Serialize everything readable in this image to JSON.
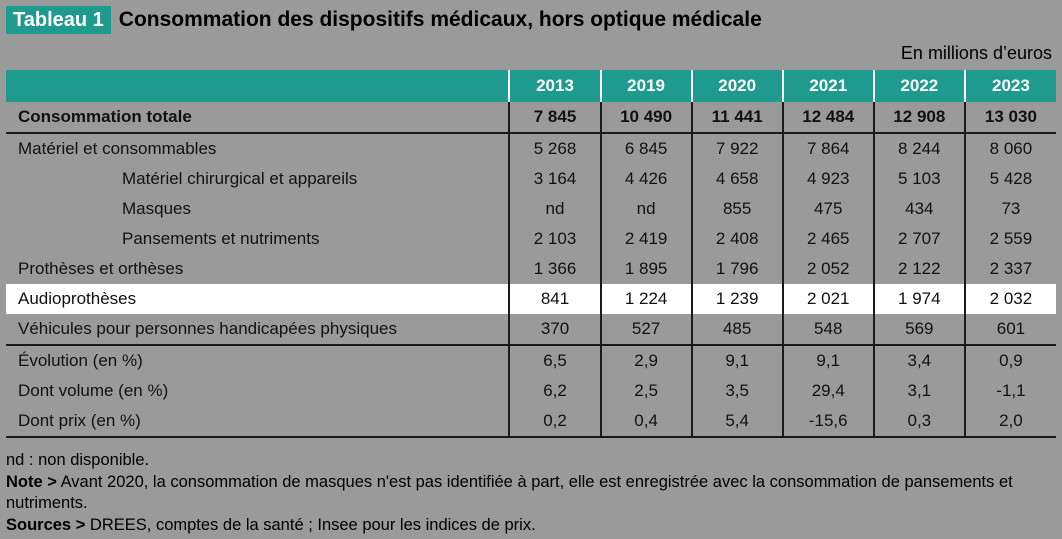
{
  "title": {
    "tag": "Tableau 1",
    "text": "Consommation des dispositifs médicaux, hors optique médicale"
  },
  "unit": "En millions d’euros",
  "columns": [
    "2013",
    "2019",
    "2020",
    "2021",
    "2022",
    "2023"
  ],
  "rows": [
    {
      "label": "Consommation totale",
      "values": [
        "7 845",
        "10 490",
        "11 441",
        "12 484",
        "12 908",
        "13 030"
      ]
    },
    {
      "label": "Matériel et consommables",
      "values": [
        "5 268",
        "6 845",
        "7 922",
        "7 864",
        "8 244",
        "8 060"
      ]
    },
    {
      "label": "Matériel chirurgical et appareils",
      "values": [
        "3 164",
        "4 426",
        "4 658",
        "4 923",
        "5 103",
        "5 428"
      ]
    },
    {
      "label": "Masques",
      "values": [
        "nd",
        "nd",
        "855",
        "475",
        "434",
        "73"
      ]
    },
    {
      "label": "Pansements et nutriments",
      "values": [
        "2 103",
        "2 419",
        "2 408",
        "2 465",
        "2 707",
        "2 559"
      ]
    },
    {
      "label": "Prothèses et orthèses",
      "values": [
        "1 366",
        "1 895",
        "1 796",
        "2 052",
        "2 122",
        "2 337"
      ]
    },
    {
      "label": "Audioprothèses",
      "values": [
        "841",
        "1 224",
        "1 239",
        "2 021",
        "1 974",
        "2 032"
      ]
    },
    {
      "label": "Véhicules pour personnes handicapées physiques",
      "values": [
        "370",
        "527",
        "485",
        "548",
        "569",
        "601"
      ]
    },
    {
      "label": "Évolution (en %)",
      "values": [
        "6,5",
        "2,9",
        "9,1",
        "9,1",
        "3,4",
        "0,9"
      ]
    },
    {
      "label": "Dont volume (en %)",
      "values": [
        "6,2",
        "2,5",
        "3,5",
        "29,4",
        "3,1",
        "-1,1"
      ]
    },
    {
      "label": "Dont prix (en %)",
      "values": [
        "0,2",
        "0,4",
        "5,4",
        "-15,6",
        "0,3",
        "2,0"
      ]
    }
  ],
  "notes": {
    "nd": "nd : non disponible.",
    "note_label": "Note >",
    "note_text": " Avant 2020, la consommation de masques n'est pas identifiée à part, elle est enregistrée avec la consommation de pansements et nutriments.",
    "sources_label": "Sources >",
    "sources_text": " DREES, comptes de la santé ; Insee pour les indices de prix."
  },
  "colors": {
    "accent": "#1e9a8f",
    "background": "#9a9a9a",
    "highlight": "#ffffff"
  }
}
